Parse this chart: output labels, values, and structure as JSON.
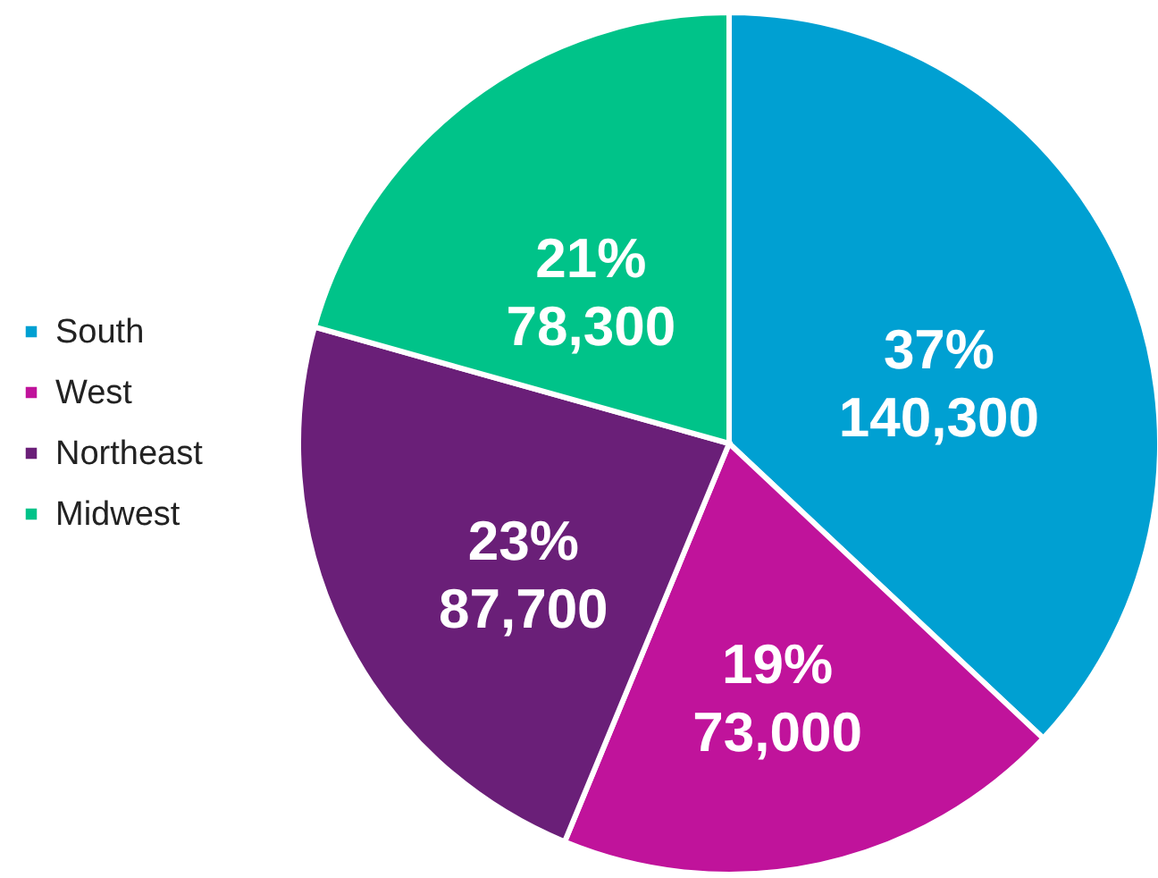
{
  "chart_data": {
    "type": "pie",
    "categories": [
      "South",
      "West",
      "Northeast",
      "Midwest"
    ],
    "values": [
      140300,
      73000,
      87700,
      78300
    ],
    "colors": [
      "#00a0d2",
      "#c0139b",
      "#6a1f78",
      "#00c389"
    ],
    "value_labels": [
      "37%\n140,300",
      "19%\n73,000",
      "23%\n87,700",
      "21%\n78,300"
    ],
    "legend": "left"
  }
}
